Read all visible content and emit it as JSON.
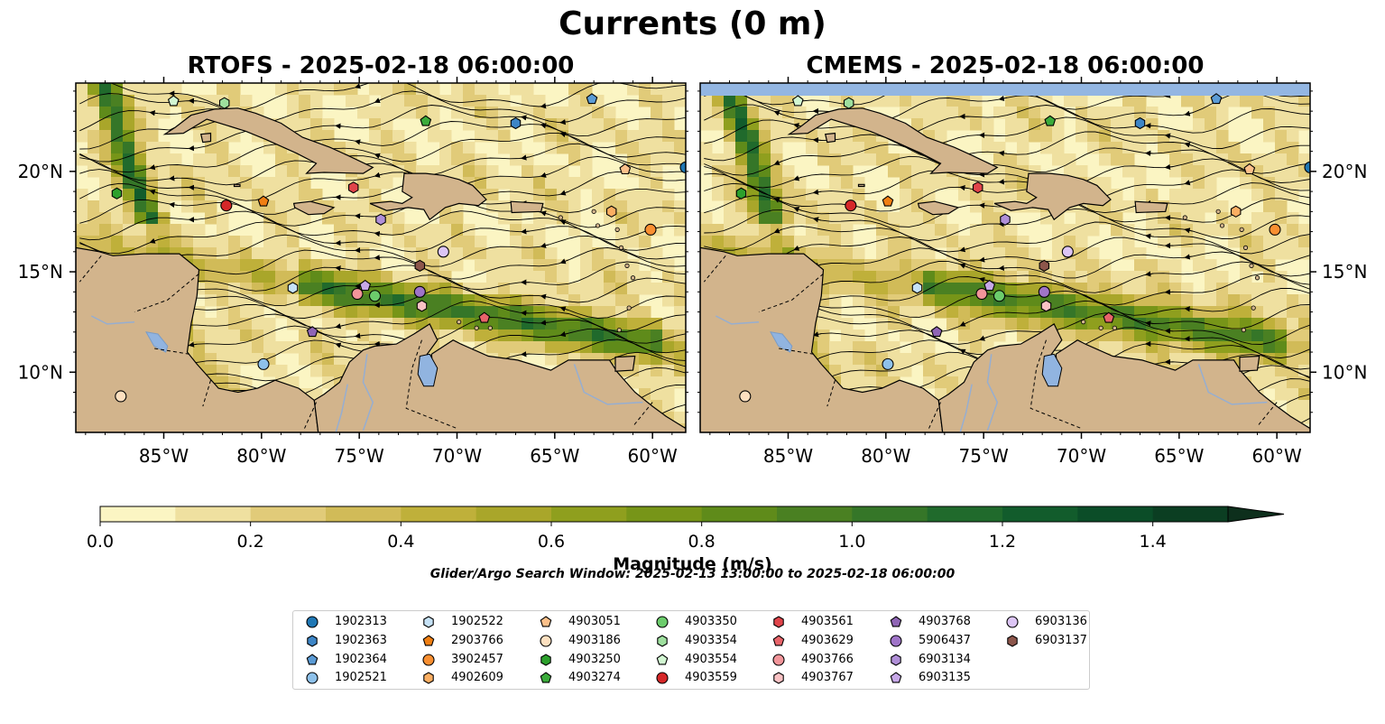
{
  "figure": {
    "title": "Currents (0 m)",
    "panel_left_title": "RTOFS - 2025-02-18 06:00:00",
    "panel_right_title": "CMEMS - 2025-02-18 06:00:00",
    "lon_ticks": [
      "85°W",
      "80°W",
      "75°W",
      "70°W",
      "65°W",
      "60°W"
    ],
    "lat_ticks": [
      "20°N",
      "15°N",
      "10°N"
    ],
    "lon_range": [
      -89.5,
      -58.3
    ],
    "lat_range": [
      7.0,
      24.4
    ],
    "colors": {
      "land": "#d2b48c",
      "water": "#91b4e0",
      "ocean_low": "#fbf5c3",
      "ocean_high": "#0a3a1e"
    }
  },
  "colorbar": {
    "label": "Magnitude (m/s)",
    "ticks": [
      "0.0",
      "0.2",
      "0.4",
      "0.6",
      "0.8",
      "1.0",
      "1.2",
      "1.4"
    ],
    "range": [
      0.0,
      1.5
    ],
    "extend": "max",
    "levels": [
      "#fbf5c3",
      "#efe0a0",
      "#e1cb79",
      "#d1bb58",
      "#bfb03a",
      "#a9a62a",
      "#8f9f1e",
      "#779518",
      "#5f8b1a",
      "#4a8022",
      "#357628",
      "#206a2c",
      "#125c2c",
      "#0b4d28",
      "#0b3e22",
      "#0d2f1c"
    ]
  },
  "search_window": "Glider/Argo Search Window: 2025-02-13 13:00:00 to 2025-02-18 06:00:00",
  "legend": [
    {
      "id": "1902313",
      "marker": "circle",
      "color": "#1f77b4"
    },
    {
      "id": "1902363",
      "marker": "hexagon",
      "color": "#3d85c6"
    },
    {
      "id": "1902364",
      "marker": "pentagon",
      "color": "#5b9bd5"
    },
    {
      "id": "1902521",
      "marker": "circle",
      "color": "#8ec1ea"
    },
    {
      "id": "1902522",
      "marker": "hexagon",
      "color": "#c6e2f7"
    },
    {
      "id": "2903766",
      "marker": "pentagon",
      "color": "#f07f13"
    },
    {
      "id": "3902457",
      "marker": "circle",
      "color": "#f98f31"
    },
    {
      "id": "4902609",
      "marker": "hexagon",
      "color": "#fbae62"
    },
    {
      "id": "4903051",
      "marker": "pentagon",
      "color": "#fcc08a"
    },
    {
      "id": "4903186",
      "marker": "circle",
      "color": "#fde0c0"
    },
    {
      "id": "4903250",
      "marker": "hexagon",
      "color": "#2ca02c"
    },
    {
      "id": "4903274",
      "marker": "pentagon",
      "color": "#3bab3b"
    },
    {
      "id": "4903350",
      "marker": "circle",
      "color": "#6ccc6c"
    },
    {
      "id": "4903354",
      "marker": "hexagon",
      "color": "#9edf9e"
    },
    {
      "id": "4903554",
      "marker": "pentagon",
      "color": "#d2f7d2"
    },
    {
      "id": "4903559",
      "marker": "circle",
      "color": "#d62728"
    },
    {
      "id": "4903561",
      "marker": "hexagon",
      "color": "#e0444a"
    },
    {
      "id": "4903629",
      "marker": "pentagon",
      "color": "#e8646a"
    },
    {
      "id": "4903766",
      "marker": "circle",
      "color": "#f2959a"
    },
    {
      "id": "4903767",
      "marker": "hexagon",
      "color": "#fac2c4"
    },
    {
      "id": "4903768",
      "marker": "pentagon",
      "color": "#8f65b5"
    },
    {
      "id": "5906437",
      "marker": "circle",
      "color": "#9f74c8"
    },
    {
      "id": "6903134",
      "marker": "hexagon",
      "color": "#b08fd8"
    },
    {
      "id": "6903135",
      "marker": "pentagon",
      "color": "#c7a8e8"
    },
    {
      "id": "6903136",
      "marker": "circle",
      "color": "#dcc5f5"
    },
    {
      "id": "6903137",
      "marker": "hexagon",
      "color": "#8c564b"
    }
  ],
  "floats": [
    {
      "id": "1902313",
      "lon": -58.3,
      "lat": 20.2
    },
    {
      "id": "1902363",
      "lon": -67.0,
      "lat": 22.4
    },
    {
      "id": "1902364",
      "lon": -63.1,
      "lat": 23.6
    },
    {
      "id": "1902521",
      "lon": -79.9,
      "lat": 10.4
    },
    {
      "id": "1902522",
      "lon": -78.4,
      "lat": 14.2
    },
    {
      "id": "2903766",
      "lon": -79.9,
      "lat": 18.5
    },
    {
      "id": "3902457",
      "lon": -60.1,
      "lat": 17.1
    },
    {
      "id": "4902609",
      "lon": -62.1,
      "lat": 18.0
    },
    {
      "id": "4903051",
      "lon": -61.4,
      "lat": 20.1
    },
    {
      "id": "4903186",
      "lon": -87.2,
      "lat": 8.8
    },
    {
      "id": "4903250",
      "lon": -87.4,
      "lat": 18.9
    },
    {
      "id": "4903274",
      "lon": -71.6,
      "lat": 22.5
    },
    {
      "id": "4903350",
      "lon": -74.2,
      "lat": 13.8
    },
    {
      "id": "4903354",
      "lon": -81.9,
      "lat": 23.4
    },
    {
      "id": "4903554",
      "lon": -84.5,
      "lat": 23.5
    },
    {
      "id": "4903559",
      "lon": -81.8,
      "lat": 18.3
    },
    {
      "id": "4903561",
      "lon": -75.3,
      "lat": 19.2
    },
    {
      "id": "4903629",
      "lon": -68.6,
      "lat": 12.7
    },
    {
      "id": "4903766",
      "lon": -75.1,
      "lat": 13.9
    },
    {
      "id": "4903767",
      "lon": -71.8,
      "lat": 13.3
    },
    {
      "id": "4903768",
      "lon": -77.4,
      "lat": 12.0
    },
    {
      "id": "5906437",
      "lon": -71.9,
      "lat": 14.0
    },
    {
      "id": "6903134",
      "lon": -73.9,
      "lat": 17.6
    },
    {
      "id": "6903135",
      "lon": -74.7,
      "lat": 14.3
    },
    {
      "id": "6903136",
      "lon": -70.7,
      "lat": 16.0
    },
    {
      "id": "6903137",
      "lon": -71.9,
      "lat": 15.3
    }
  ]
}
